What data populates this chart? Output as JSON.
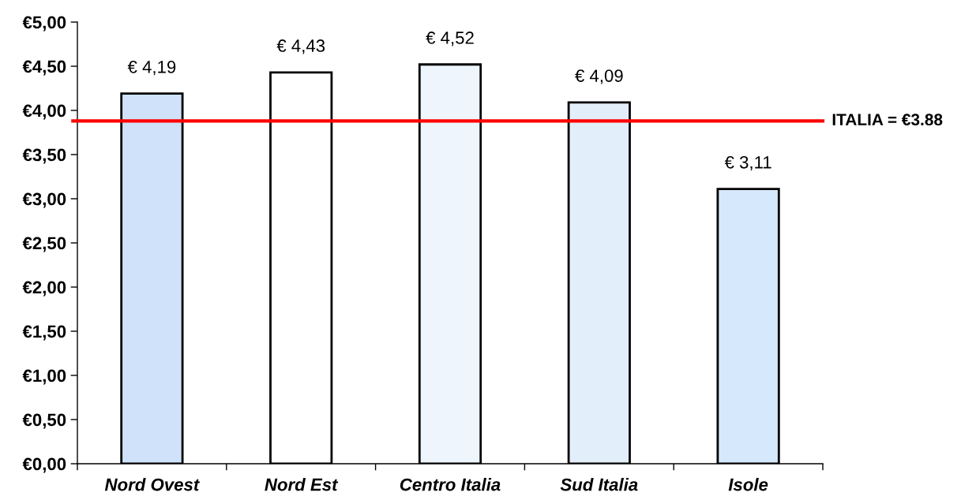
{
  "chart_data": {
    "type": "bar",
    "categories": [
      "Nord Ovest",
      "Nord Est",
      "Centro Italia",
      "Sud Italia",
      "Isole"
    ],
    "values": [
      4.19,
      4.43,
      4.52,
      4.09,
      3.11
    ],
    "colors": [
      "#cfe2f9",
      "#ffffff",
      "#eef5fd",
      "#e3eefb",
      "#d6e8fc"
    ],
    "value_labels": [
      "€ 4,19",
      "€ 4,43",
      "€ 4,52",
      "€ 4,09",
      "€ 3,11"
    ],
    "ylim": [
      0,
      5
    ],
    "yticks": [
      {
        "value": 0,
        "label": "€0,00"
      },
      {
        "value": 0.5,
        "label": "€0,50"
      },
      {
        "value": 1,
        "label": "€1,00"
      },
      {
        "value": 1.5,
        "label": "€1,50"
      },
      {
        "value": 2,
        "label": "€2,00"
      },
      {
        "value": 2.5,
        "label": "€2,50"
      },
      {
        "value": 3,
        "label": "€3,00"
      },
      {
        "value": 3.5,
        "label": "€3,50"
      },
      {
        "value": 4,
        "label": "€4,00"
      },
      {
        "value": 4.5,
        "label": "€4,50"
      },
      {
        "value": 5,
        "label": "€5,00"
      }
    ],
    "ref_lines": [
      {
        "axis": "y",
        "value": 3.88,
        "label": "ITALIA = €3.88",
        "color": "#ff0000",
        "line_style": "solid"
      }
    ],
    "grid": false
  }
}
